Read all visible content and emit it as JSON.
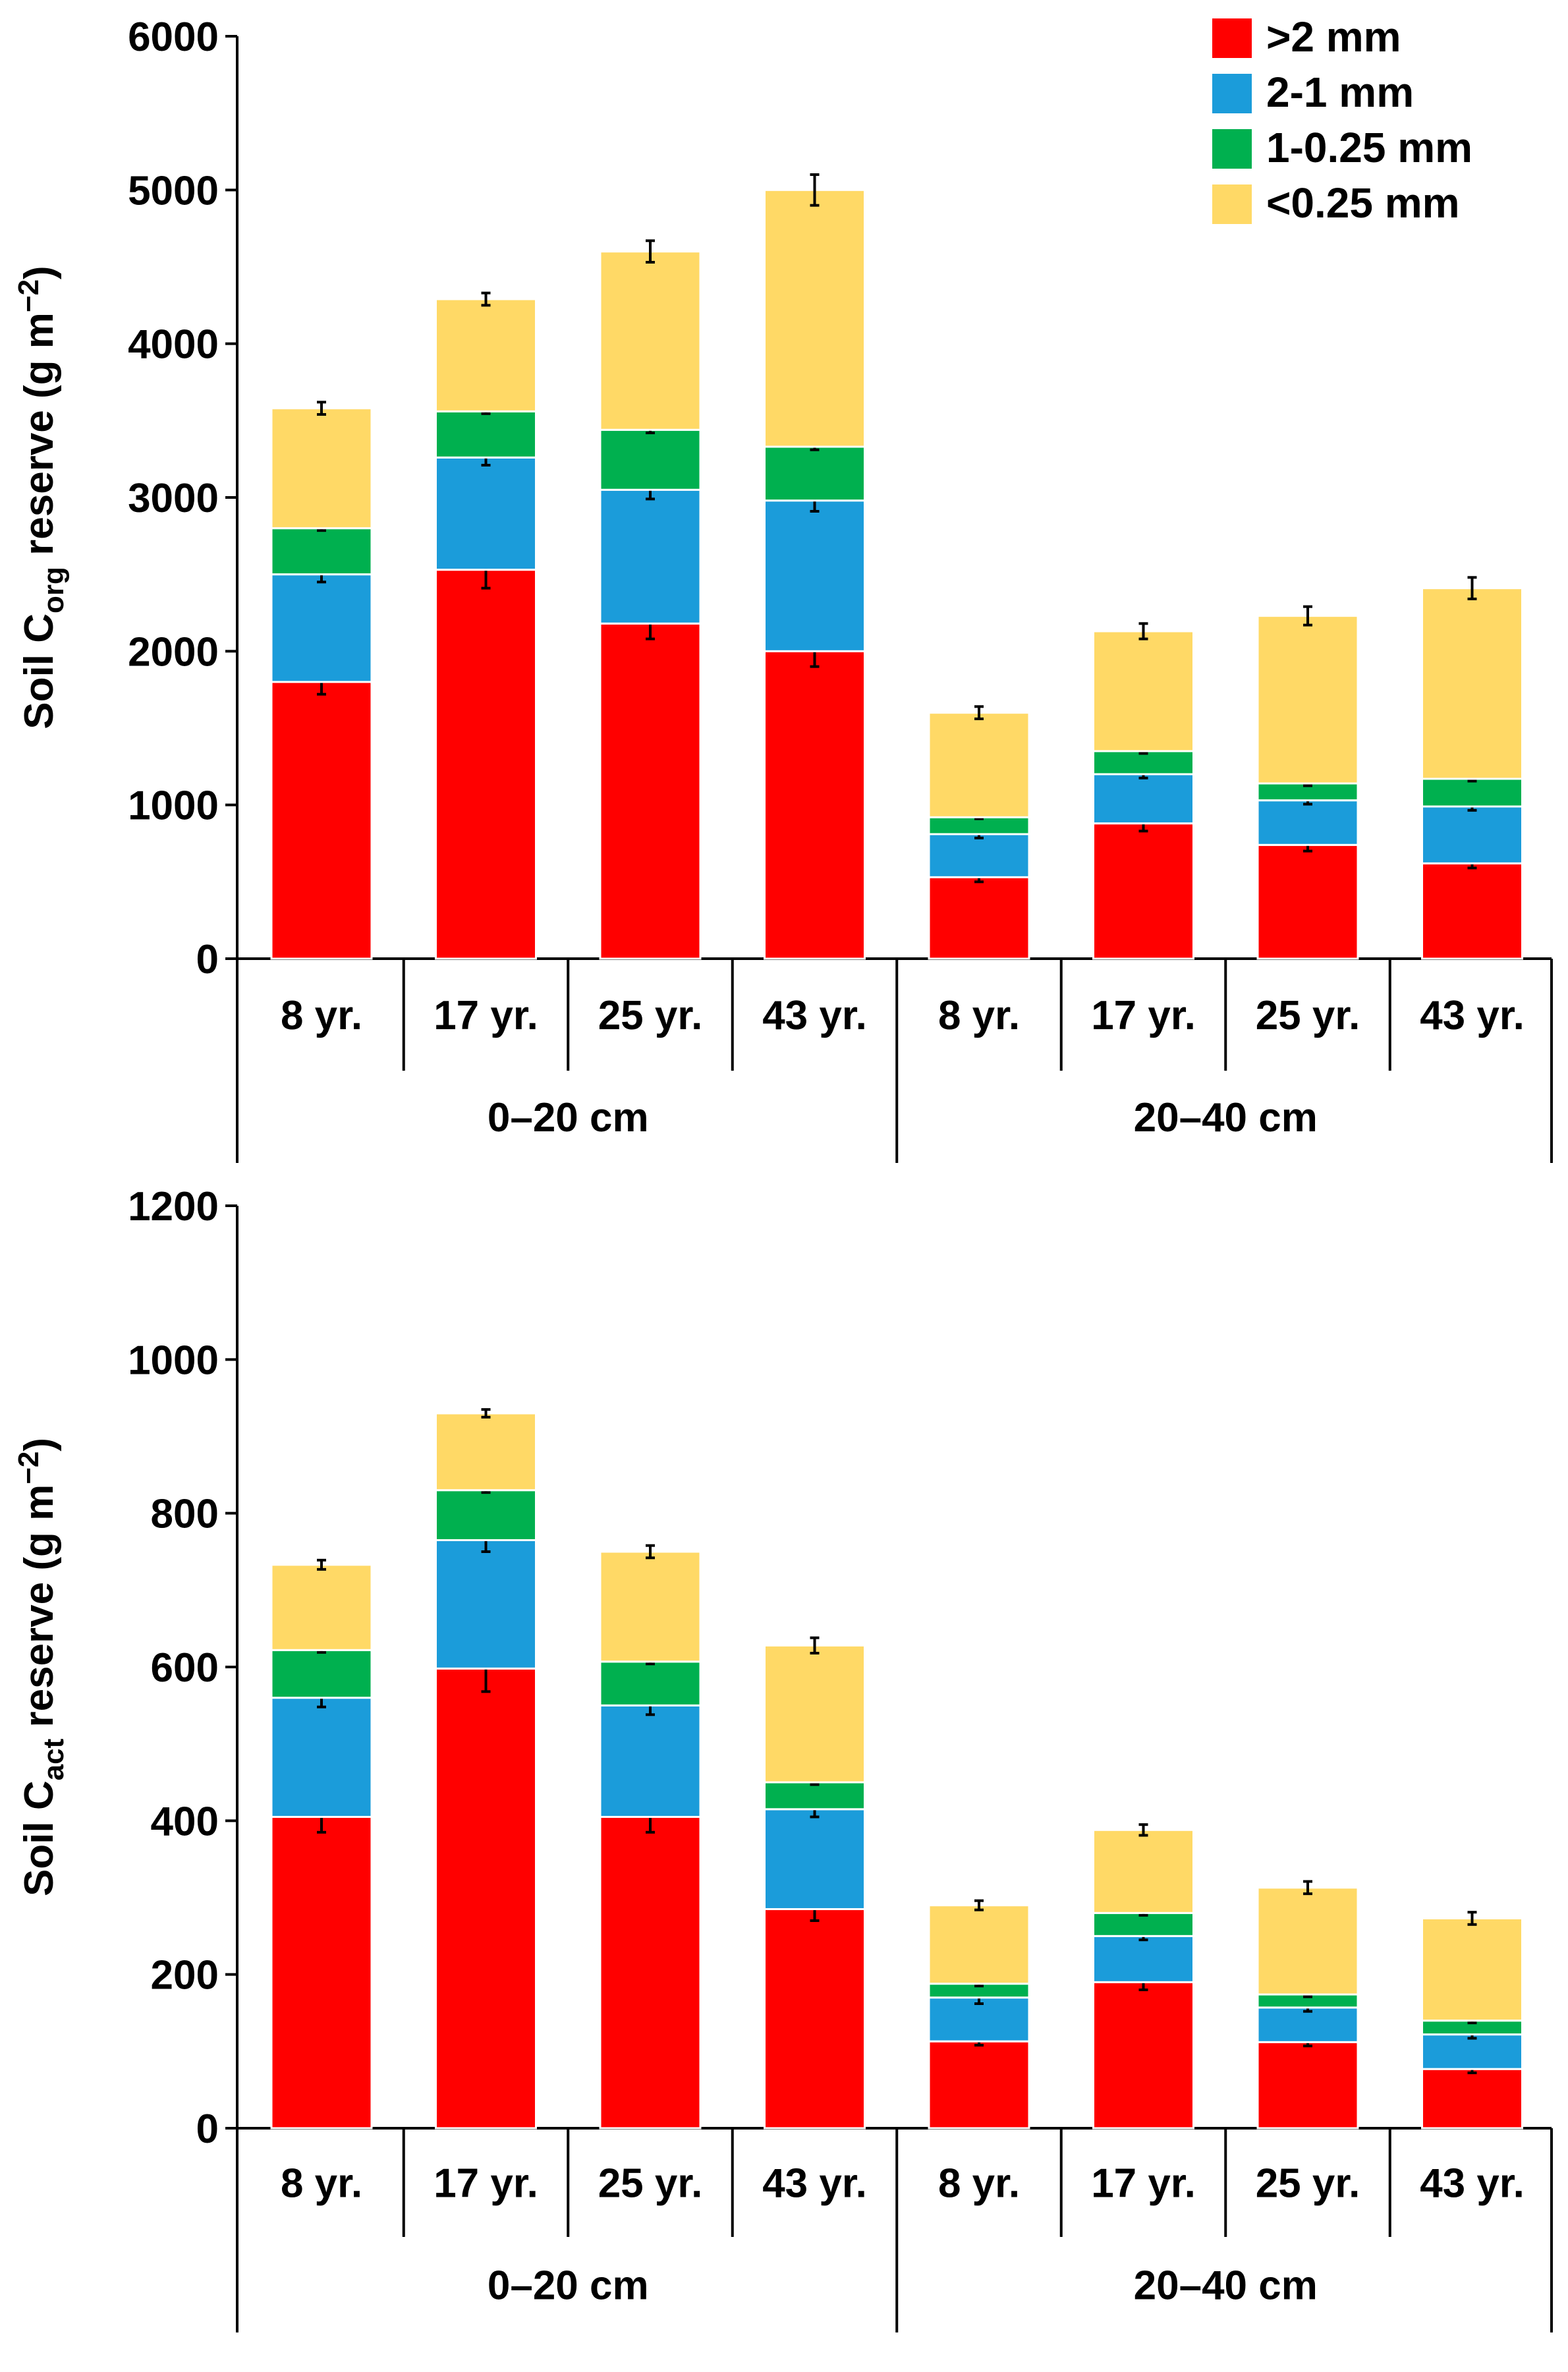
{
  "colors": {
    "gt2mm": "#ff0000",
    "mm2_1": "#1b9cda",
    "mm1_025": "#00b04f",
    "lt025": "#ffd966"
  },
  "legend": {
    "position": "top-right",
    "items": [
      {
        "label": ">2 mm",
        "color_key": "gt2mm"
      },
      {
        "label": "2-1 mm",
        "color_key": "mm2_1"
      },
      {
        "label": "1-0.25 mm",
        "color_key": "mm1_025"
      },
      {
        "label": "<0.25 mm",
        "color_key": "lt025"
      }
    ]
  },
  "chart_data": [
    {
      "type": "bar",
      "stacked": true,
      "ylabel_main": "Soil C",
      "ylabel_sub": "org",
      "ylabel_rest": " reserve (g m",
      "ylabel_sup": "−2",
      "ylabel_end": ")",
      "ylim": [
        0,
        6000
      ],
      "yticks": [
        0,
        1000,
        2000,
        3000,
        4000,
        5000,
        6000
      ],
      "categories": [
        "8 yr.",
        "17 yr.",
        "25 yr.",
        "43 yr.",
        "8 yr.",
        "17 yr.",
        "25 yr.",
        "43 yr."
      ],
      "groups": [
        {
          "label": "0–20 cm",
          "categories": [
            0,
            1,
            2,
            3
          ]
        },
        {
          "label": "20–40 cm",
          "categories": [
            4,
            5,
            6,
            7
          ]
        }
      ],
      "series": [
        {
          "name": ">2 mm",
          "color_key": "gt2mm",
          "values": [
            1800,
            2530,
            2180,
            2000,
            530,
            880,
            740,
            620
          ],
          "errors": [
            80,
            120,
            100,
            100,
            30,
            50,
            40,
            30
          ]
        },
        {
          "name": "2-1 mm",
          "color_key": "mm2_1",
          "values": [
            700,
            730,
            870,
            980,
            280,
            320,
            290,
            370
          ],
          "errors": [
            50,
            50,
            60,
            70,
            25,
            25,
            25,
            25
          ]
        },
        {
          "name": "1-0.25 mm",
          "color_key": "mm1_025",
          "values": [
            300,
            300,
            390,
            350,
            110,
            150,
            110,
            180
          ],
          "errors": [
            15,
            15,
            20,
            20,
            10,
            15,
            15,
            15
          ]
        },
        {
          "name": "<0.25 mm",
          "color_key": "lt025",
          "values": [
            780,
            730,
            1160,
            1670,
            680,
            780,
            1090,
            1240
          ],
          "errors": [
            40,
            40,
            70,
            100,
            40,
            50,
            60,
            70
          ]
        }
      ]
    },
    {
      "type": "bar",
      "stacked": true,
      "ylabel_main": "Soil C",
      "ylabel_sub": "act",
      "ylabel_rest": " reserve (g m",
      "ylabel_sup": "−2",
      "ylabel_end": ")",
      "ylim": [
        0,
        1200
      ],
      "yticks": [
        0,
        200,
        400,
        600,
        800,
        1000,
        1200
      ],
      "categories": [
        "8 yr.",
        "17 yr.",
        "25 yr.",
        "43 yr.",
        "8 yr.",
        "17 yr.",
        "25 yr.",
        "43 yr."
      ],
      "groups": [
        {
          "label": "0–20 cm",
          "categories": [
            0,
            1,
            2,
            3
          ]
        },
        {
          "label": "20–40 cm",
          "categories": [
            4,
            5,
            6,
            7
          ]
        }
      ],
      "series": [
        {
          "name": ">2 mm",
          "color_key": "gt2mm",
          "values": [
            405,
            598,
            405,
            285,
            113,
            190,
            112,
            77
          ],
          "errors": [
            20,
            30,
            20,
            15,
            5,
            10,
            5,
            5
          ]
        },
        {
          "name": "2-1 mm",
          "color_key": "mm2_1",
          "values": [
            155,
            167,
            145,
            130,
            57,
            60,
            45,
            45
          ],
          "errors": [
            12,
            15,
            12,
            10,
            8,
            5,
            5,
            5
          ]
        },
        {
          "name": "1-0.25 mm",
          "color_key": "mm1_025",
          "values": [
            62,
            65,
            57,
            35,
            18,
            30,
            17,
            18
          ],
          "errors": [
            3,
            3,
            3,
            3,
            3,
            3,
            3,
            3
          ]
        },
        {
          "name": "<0.25 mm",
          "color_key": "lt025",
          "values": [
            111,
            100,
            143,
            178,
            102,
            108,
            139,
            133
          ],
          "errors": [
            6,
            5,
            8,
            10,
            6,
            7,
            8,
            8
          ]
        }
      ]
    }
  ]
}
